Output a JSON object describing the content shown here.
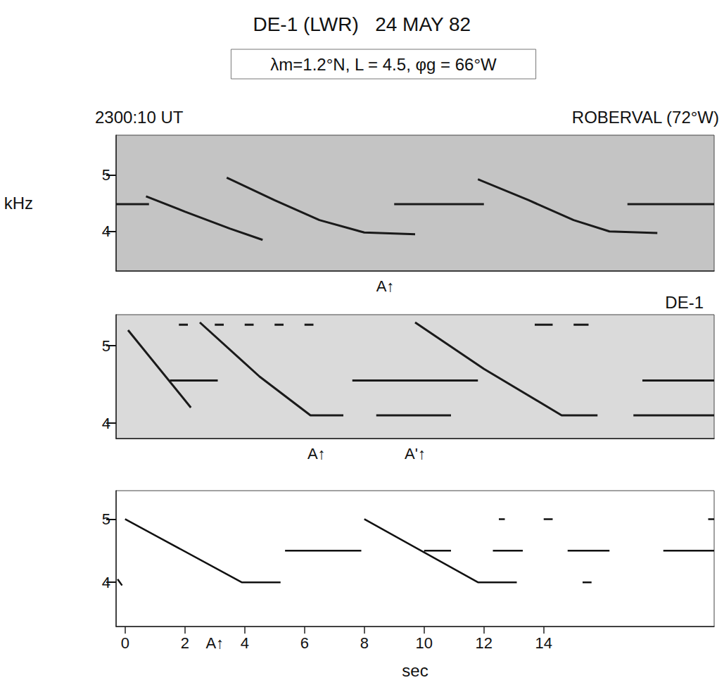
{
  "title": "DE-1 (LWR)   24 MAY 82",
  "subtitle": "λm=1.2°N, L = 4.5, φg = 66°W",
  "chart_data": [
    {
      "type": "line",
      "title": "ROBERVAL (72°W)",
      "time_label": "2300:10 UT",
      "y_label": "kHz",
      "xlim": [
        -0.3,
        19.7
      ],
      "ylim": [
        3.3,
        5.7
      ],
      "yticks": [
        4,
        5
      ],
      "tick_labels": "y",
      "grid": false,
      "series": [
        {
          "color": "#1a1a1a",
          "x": [
            -0.3,
            0.8,
            0.8,
            0.7,
            2.0,
            3.5,
            4.6,
            4.6,
            3.4,
            5.0,
            6.5,
            8.0,
            9.7,
            9.7,
            9.0,
            12.0,
            12.0,
            11.8,
            13.5,
            15.0,
            16.2,
            17.8,
            17.8,
            16.8,
            19.7
          ],
          "values": [
            4.48,
            4.48,
            null,
            4.62,
            4.35,
            4.05,
            3.85,
            null,
            4.95,
            4.55,
            4.2,
            3.98,
            3.95,
            null,
            4.48,
            4.48,
            null,
            4.92,
            4.55,
            4.2,
            4.0,
            3.97,
            null,
            4.48,
            4.48
          ]
        }
      ],
      "annotations": [
        {
          "text": "A↑",
          "x": 8.7
        }
      ]
    },
    {
      "type": "line",
      "title": "DE-1",
      "xlim": [
        -0.3,
        19.7
      ],
      "ylim": [
        3.8,
        5.4
      ],
      "yticks": [
        4,
        5
      ],
      "tick_labels": "y",
      "grid": false,
      "series": [
        {
          "color": "#1a1a1a",
          "x": [
            1.8,
            2.1,
            2.1,
            3.0,
            3.3,
            3.3,
            4.0,
            4.3,
            4.3,
            5.0,
            5.3,
            5.3,
            6.0,
            6.3,
            6.3,
            13.7,
            14.3,
            14.3,
            15.0,
            15.5,
            15.5,
            0.1,
            2.2,
            2.2,
            2.5,
            4.5,
            6.2,
            7.3,
            7.3,
            1.5,
            3.1,
            3.1,
            7.6,
            11.8,
            11.8,
            8.4,
            10.9,
            10.9,
            9.7,
            12.0,
            14.6,
            15.8,
            15.8,
            17.0,
            19.7,
            19.7,
            17.3,
            19.7
          ],
          "values": [
            5.27,
            5.27,
            null,
            5.27,
            5.27,
            null,
            5.27,
            5.27,
            null,
            5.27,
            5.27,
            null,
            5.27,
            5.27,
            null,
            5.27,
            5.27,
            null,
            5.27,
            5.27,
            null,
            5.2,
            4.2,
            null,
            5.3,
            4.6,
            4.1,
            4.1,
            null,
            4.55,
            4.55,
            null,
            4.55,
            4.55,
            null,
            4.1,
            4.1,
            null,
            5.3,
            4.7,
            4.1,
            4.1,
            null,
            4.1,
            4.1,
            null,
            4.55,
            4.55
          ]
        }
      ],
      "annotations": [
        {
          "text": "A↑",
          "x": 6.4
        },
        {
          "text": "A'↑",
          "x": 9.7
        }
      ]
    },
    {
      "type": "line",
      "x_label": "sec",
      "xlim": [
        -0.3,
        19.7
      ],
      "ylim": [
        3.3,
        5.45
      ],
      "xticks": [
        0,
        2,
        4,
        6,
        8,
        10,
        12,
        14
      ],
      "yticks": [
        4,
        5
      ],
      "grid": false,
      "series": [
        {
          "color": "#111111",
          "x": [
            -0.25,
            -0.1,
            -0.1,
            0,
            3.9,
            5.2,
            5.2,
            5.35,
            7.9,
            7.9,
            8.0,
            11.8,
            13.1,
            13.1,
            10.0,
            10.9,
            10.9,
            12.3,
            13.3,
            13.3,
            12.5,
            12.7,
            12.7,
            14.0,
            14.3,
            14.3,
            19.5,
            19.7,
            19.7,
            15.3,
            15.6,
            15.6,
            14.8,
            16.2,
            16.2,
            18.0,
            19.7
          ],
          "values": [
            4.05,
            3.95,
            null,
            5.0,
            4.0,
            4.0,
            null,
            4.5,
            4.5,
            null,
            5.0,
            4.0,
            4.0,
            null,
            4.5,
            4.5,
            null,
            4.5,
            4.5,
            null,
            5.0,
            5.0,
            null,
            5.0,
            5.0,
            null,
            5.0,
            5.0,
            null,
            4.0,
            4.0,
            null,
            4.5,
            4.5,
            null,
            4.5,
            4.5
          ]
        }
      ],
      "annotations": [
        {
          "text": "A↑",
          "x": 3.0
        }
      ]
    }
  ]
}
